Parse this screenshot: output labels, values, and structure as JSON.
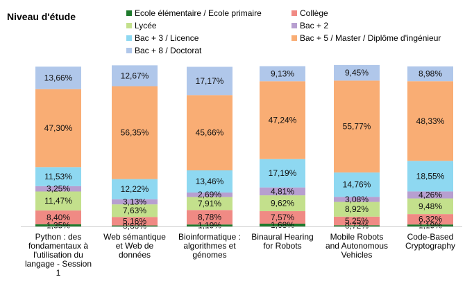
{
  "chart_data": {
    "type": "bar",
    "stacked": true,
    "title": "Niveau d'étude",
    "legend_placement": "top",
    "grid": false,
    "ylim": [
      0,
      100
    ],
    "categories": [
      [
        "Python : des",
        "fondamentaux à",
        "l'utilisation du",
        "langage - Session",
        "1"
      ],
      [
        "Web sémantique",
        "et Web de",
        "données"
      ],
      [
        "Bioinformatique :",
        "algorithmes et",
        "génomes"
      ],
      [
        "Binaural Hearing",
        "for Robots"
      ],
      [
        "Mobile Robots",
        "and Autonomous",
        "Vehicles"
      ],
      [
        "Code-Based",
        "Cryptography"
      ]
    ],
    "series": [
      {
        "name": "Ecole élémentaire / Ecole primaire",
        "color": "#1e7a2c",
        "values": [
          1.35,
          0.6,
          1.19,
          1.68,
          0.72,
          1.19
        ],
        "labels": [
          "1,35%",
          "0,60%",
          "1,19%",
          "1,68%",
          "0,72%",
          "1,19%"
        ]
      },
      {
        "name": "Collège",
        "color": "#f08a84",
        "values": [
          8.4,
          5.16,
          8.78,
          7.57,
          5.25,
          6.32
        ],
        "labels": [
          "8,40%",
          "5,16%",
          "8,78%",
          "7,57%",
          "5,25%",
          "6,32%"
        ]
      },
      {
        "name": "Lycée",
        "color": "#c3e08c",
        "values": [
          11.47,
          7.63,
          7.91,
          9.62,
          8.92,
          9.48
        ],
        "labels": [
          "11,47%",
          "7,63%",
          "7,91%",
          "9,62%",
          "8,92%",
          "9,48%"
        ]
      },
      {
        "name": "Bac + 2",
        "color": "#b79fd0",
        "values": [
          3.25,
          3.13,
          2.69,
          4.81,
          3.08,
          4.26
        ],
        "labels": [
          "3,25%",
          "3,13%",
          "2,69%",
          "4,81%",
          "3,08%",
          "4,26%"
        ]
      },
      {
        "name": "Bac + 3 / Licence",
        "color": "#8ed8f1",
        "values": [
          11.53,
          12.22,
          13.46,
          17.19,
          14.76,
          18.55
        ],
        "labels": [
          "11,53%",
          "12,22%",
          "13,46%",
          "17,19%",
          "14,76%",
          "18,55%"
        ]
      },
      {
        "name": "Bac + 5 / Master / Diplôme d'ingénieur",
        "color": "#f9ad74",
        "values": [
          47.3,
          56.35,
          45.66,
          47.24,
          55.77,
          48.33
        ],
        "labels": [
          "47,30%",
          "56,35%",
          "45,66%",
          "47,24%",
          "55,77%",
          "48,33%"
        ]
      },
      {
        "name": "Bac + 8 / Doctorat",
        "color": "#b0c7ea",
        "values": [
          13.66,
          12.67,
          17.17,
          9.13,
          9.45,
          8.98
        ],
        "labels": [
          "13,66%",
          "12,67%",
          "17,17%",
          "9,13%",
          "9,45%",
          "8,98%"
        ]
      }
    ]
  }
}
